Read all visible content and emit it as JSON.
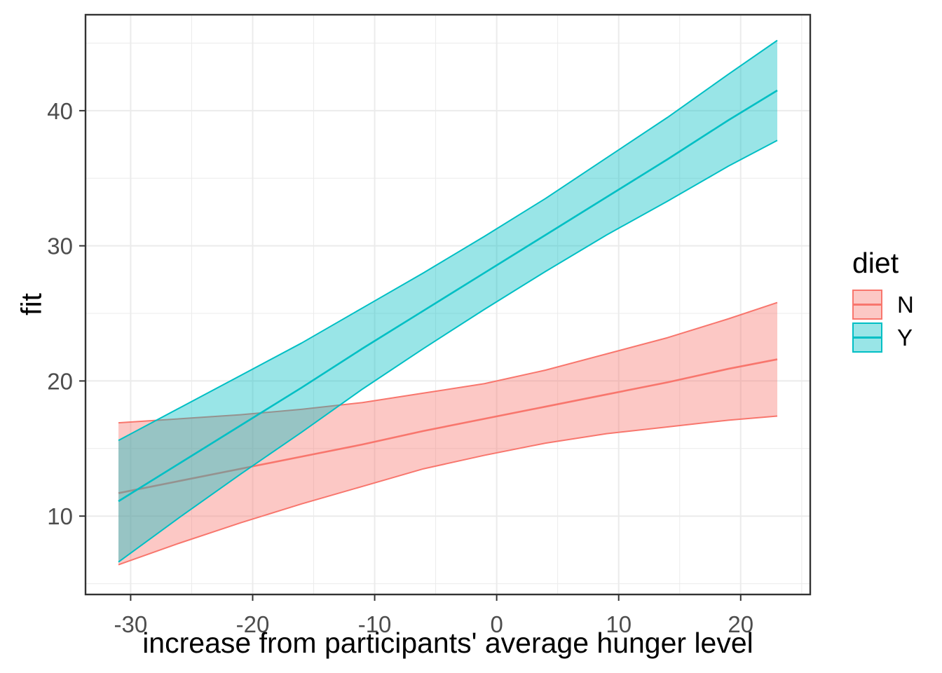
{
  "legend": {
    "title": "diet",
    "position": "right",
    "items": [
      {
        "label": "N",
        "series": "N"
      },
      {
        "label": "Y",
        "series": "Y"
      }
    ]
  },
  "chart_data": {
    "type": "line",
    "subtype": "fitted-lines-with-confidence-ribbons",
    "title": "",
    "xlabel": "increase from participants' average hunger level",
    "ylabel": "fit",
    "xlim": [
      -33.7,
      25.7
    ],
    "ylim": [
      4.2,
      47.1
    ],
    "x_ticks": [
      -30,
      -20,
      -10,
      0,
      10,
      20
    ],
    "y_ticks": [
      10,
      20,
      30,
      40
    ],
    "x_minor": [
      -25,
      -15,
      -5,
      5,
      15,
      25
    ],
    "y_minor": [
      5,
      15,
      25,
      35,
      45
    ],
    "grid": true,
    "panel_border_color": "#333333",
    "grid_color": "#EBEBEB",
    "tick_label_color": "#4D4D4D",
    "series": [
      {
        "name": "N",
        "color": "#F8766D",
        "fill_alpha": 0.4,
        "x": [
          -31,
          -26,
          -21,
          -16,
          -11,
          -6,
          -1,
          4,
          9,
          14,
          19,
          23
        ],
        "fit": [
          11.7,
          12.6,
          13.5,
          14.4,
          15.3,
          16.3,
          17.2,
          18.1,
          19.0,
          19.9,
          20.9,
          21.6
        ],
        "lower": [
          6.4,
          8.0,
          9.5,
          10.9,
          12.2,
          13.5,
          14.5,
          15.4,
          16.1,
          16.6,
          17.1,
          17.4
        ],
        "upper": [
          16.9,
          17.2,
          17.5,
          17.9,
          18.4,
          19.1,
          19.8,
          20.8,
          22.0,
          23.2,
          24.6,
          25.8
        ]
      },
      {
        "name": "Y",
        "color": "#00BFC4",
        "fill_alpha": 0.4,
        "x": [
          -31,
          -26,
          -21,
          -16,
          -11,
          -6,
          -1,
          4,
          9,
          14,
          19,
          23
        ],
        "fit": [
          11.1,
          13.9,
          16.7,
          19.5,
          22.4,
          25.2,
          28.0,
          30.8,
          33.6,
          36.4,
          39.3,
          41.5
        ],
        "lower": [
          6.6,
          9.9,
          13.1,
          16.2,
          19.4,
          22.4,
          25.3,
          28.1,
          30.8,
          33.3,
          35.9,
          37.8
        ],
        "upper": [
          15.6,
          18.0,
          20.4,
          22.8,
          25.4,
          28.0,
          30.7,
          33.5,
          36.5,
          39.5,
          42.7,
          45.2
        ]
      }
    ]
  }
}
